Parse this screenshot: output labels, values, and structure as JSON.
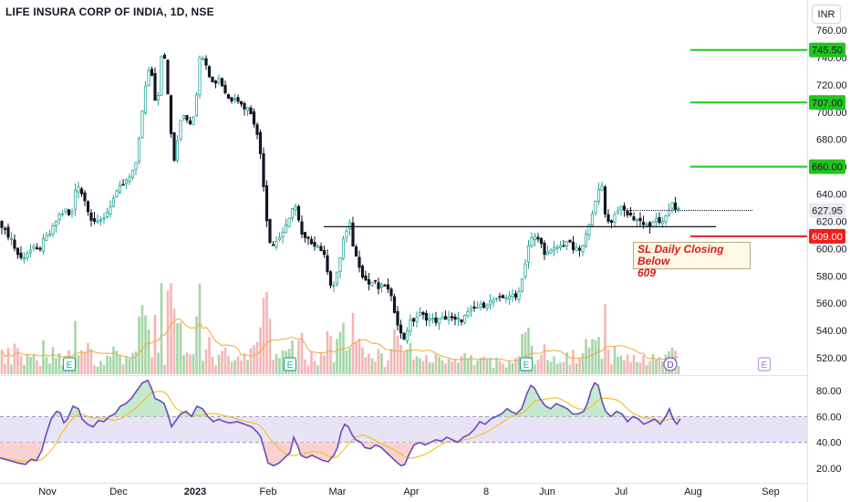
{
  "header": {
    "title": "LIFE INSURA CORP OF INDIA, 1D, NSE",
    "currency": "INR"
  },
  "annotation": {
    "line1": "SL Daily Closing Below",
    "line2": "609"
  },
  "colors": {
    "up": "#26a69a",
    "down": "#131722",
    "green_level": "#22c51e",
    "red_level": "#ef1e1e",
    "volume_up": "#a5d6a7",
    "volume_down": "#f4b6b6",
    "rsi_line": "#6a4bbd",
    "rsi_ma": "#f2c230",
    "rsi_band": "#e9e3f7"
  },
  "chart_data": {
    "type": "candlestick",
    "x_ticks": [
      "Nov",
      "Dec",
      "2023",
      "Feb",
      "Mar",
      "Apr",
      "8",
      "Jun",
      "Jul",
      "Aug",
      "Sep"
    ],
    "y_ticks": [
      "760.00",
      "740.00",
      "720.00",
      "700.00",
      "680.00",
      "660.00",
      "640.00",
      "620.00",
      "600.00",
      "580.00",
      "560.00",
      "540.00",
      "520.00"
    ],
    "ylim": [
      510,
      765
    ],
    "last_price": "627.95",
    "levels": [
      {
        "label": "745.50",
        "value": 745.5,
        "kind": "target"
      },
      {
        "label": "707.00",
        "value": 707.0,
        "kind": "target"
      },
      {
        "label": "660.00",
        "value": 660.0,
        "kind": "target"
      },
      {
        "label": "609.00",
        "value": 609.0,
        "kind": "stop"
      }
    ],
    "support_line": 616,
    "event_markers": [
      "E",
      "E",
      "E",
      "D",
      "E"
    ],
    "close_path": [
      [
        0,
        620
      ],
      [
        6,
        612
      ],
      [
        12,
        608
      ],
      [
        18,
        597
      ],
      [
        24,
        592
      ],
      [
        28,
        596
      ],
      [
        36,
        600
      ],
      [
        42,
        598
      ],
      [
        48,
        606
      ],
      [
        56,
        612
      ],
      [
        64,
        624
      ],
      [
        72,
        628
      ],
      [
        78,
        622
      ],
      [
        84,
        650
      ],
      [
        90,
        640
      ],
      [
        96,
        630
      ],
      [
        100,
        622
      ],
      [
        108,
        618
      ],
      [
        116,
        625
      ],
      [
        124,
        636
      ],
      [
        132,
        645
      ],
      [
        140,
        650
      ],
      [
        148,
        658
      ],
      [
        156,
        700
      ],
      [
        160,
        720
      ],
      [
        164,
        735
      ],
      [
        168,
        722
      ],
      [
        172,
        698
      ],
      [
        176,
        740
      ],
      [
        180,
        745
      ],
      [
        184,
        712
      ],
      [
        188,
        680
      ],
      [
        192,
        660
      ],
      [
        196,
        688
      ],
      [
        200,
        700
      ],
      [
        204,
        696
      ],
      [
        208,
        692
      ],
      [
        214,
        700
      ],
      [
        218,
        738
      ],
      [
        224,
        742
      ],
      [
        228,
        730
      ],
      [
        234,
        720
      ],
      [
        240,
        725
      ],
      [
        246,
        716
      ],
      [
        252,
        708
      ],
      [
        258,
        712
      ],
      [
        266,
        704
      ],
      [
        274,
        702
      ],
      [
        280,
        690
      ],
      [
        286,
        668
      ],
      [
        290,
        640
      ],
      [
        294,
        610
      ],
      [
        298,
        602
      ],
      [
        304,
        606
      ],
      [
        310,
        612
      ],
      [
        316,
        618
      ],
      [
        322,
        635
      ],
      [
        326,
        626
      ],
      [
        330,
        610
      ],
      [
        336,
        606
      ],
      [
        342,
        605
      ],
      [
        348,
        602
      ],
      [
        354,
        598
      ],
      [
        360,
        582
      ],
      [
        364,
        570
      ],
      [
        368,
        576
      ],
      [
        372,
        590
      ],
      [
        376,
        606
      ],
      [
        380,
        612
      ],
      [
        384,
        618
      ],
      [
        388,
        598
      ],
      [
        394,
        588
      ],
      [
        398,
        580
      ],
      [
        404,
        574
      ],
      [
        410,
        576
      ],
      [
        416,
        570
      ],
      [
        422,
        574
      ],
      [
        428,
        566
      ],
      [
        432,
        556
      ],
      [
        436,
        546
      ],
      [
        440,
        536
      ],
      [
        444,
        534
      ],
      [
        448,
        545
      ],
      [
        454,
        548
      ],
      [
        460,
        552
      ],
      [
        466,
        550
      ],
      [
        472,
        548
      ],
      [
        480,
        547
      ],
      [
        486,
        549
      ],
      [
        492,
        550
      ],
      [
        498,
        547
      ],
      [
        506,
        548
      ],
      [
        512,
        552
      ],
      [
        520,
        556
      ],
      [
        528,
        558
      ],
      [
        534,
        560
      ],
      [
        540,
        562
      ],
      [
        546,
        562
      ],
      [
        552,
        564
      ],
      [
        558,
        566
      ],
      [
        566,
        564
      ],
      [
        572,
        576
      ],
      [
        576,
        590
      ],
      [
        580,
        604
      ],
      [
        584,
        608
      ],
      [
        588,
        608
      ],
      [
        592,
        606
      ],
      [
        596,
        598
      ],
      [
        602,
        596
      ],
      [
        608,
        600
      ],
      [
        616,
        602
      ],
      [
        622,
        606
      ],
      [
        628,
        600
      ],
      [
        634,
        598
      ],
      [
        640,
        602
      ],
      [
        644,
        614
      ],
      [
        648,
        625
      ],
      [
        652,
        630
      ],
      [
        656,
        642
      ],
      [
        660,
        646
      ],
      [
        664,
        624
      ],
      [
        668,
        618
      ],
      [
        672,
        622
      ],
      [
        678,
        630
      ],
      [
        684,
        628
      ],
      [
        690,
        624
      ],
      [
        696,
        622
      ],
      [
        702,
        620
      ],
      [
        708,
        618
      ],
      [
        714,
        616
      ],
      [
        720,
        622
      ],
      [
        726,
        618
      ],
      [
        732,
        624
      ],
      [
        736,
        636
      ],
      [
        740,
        630
      ],
      [
        744,
        628
      ]
    ],
    "volume_axis_note": "volume histogram with moving average",
    "rsi": {
      "y_ticks": [
        "80.00",
        "60.00",
        "40.00",
        "20.00"
      ],
      "ylim": [
        12,
        92
      ],
      "band": [
        40,
        60
      ],
      "path": [
        [
          0,
          28
        ],
        [
          10,
          26
        ],
        [
          20,
          24
        ],
        [
          28,
          23
        ],
        [
          34,
          27
        ],
        [
          40,
          26
        ],
        [
          46,
          34
        ],
        [
          50,
          45
        ],
        [
          56,
          58
        ],
        [
          62,
          64
        ],
        [
          66,
          63
        ],
        [
          70,
          55
        ],
        [
          74,
          58
        ],
        [
          80,
          68
        ],
        [
          86,
          66
        ],
        [
          90,
          58
        ],
        [
          96,
          54
        ],
        [
          102,
          52
        ],
        [
          108,
          57
        ],
        [
          114,
          56
        ],
        [
          120,
          60
        ],
        [
          126,
          62
        ],
        [
          132,
          68
        ],
        [
          138,
          70
        ],
        [
          144,
          74
        ],
        [
          150,
          80
        ],
        [
          156,
          86
        ],
        [
          162,
          88
        ],
        [
          166,
          82
        ],
        [
          170,
          74
        ],
        [
          176,
          72
        ],
        [
          180,
          70
        ],
        [
          184,
          62
        ],
        [
          188,
          52
        ],
        [
          192,
          56
        ],
        [
          198,
          62
        ],
        [
          204,
          64
        ],
        [
          210,
          60
        ],
        [
          216,
          68
        ],
        [
          222,
          66
        ],
        [
          228,
          60
        ],
        [
          234,
          56
        ],
        [
          240,
          58
        ],
        [
          246,
          56
        ],
        [
          252,
          55
        ],
        [
          260,
          56
        ],
        [
          268,
          54
        ],
        [
          276,
          52
        ],
        [
          282,
          48
        ],
        [
          286,
          44
        ],
        [
          290,
          34
        ],
        [
          294,
          24
        ],
        [
          300,
          22
        ],
        [
          306,
          24
        ],
        [
          312,
          28
        ],
        [
          318,
          32
        ],
        [
          322,
          44
        ],
        [
          326,
          38
        ],
        [
          330,
          30
        ],
        [
          336,
          28
        ],
        [
          342,
          30
        ],
        [
          348,
          28
        ],
        [
          354,
          26
        ],
        [
          360,
          25
        ],
        [
          366,
          30
        ],
        [
          370,
          36
        ],
        [
          374,
          48
        ],
        [
          378,
          54
        ],
        [
          382,
          52
        ],
        [
          386,
          46
        ],
        [
          390,
          42
        ],
        [
          396,
          40
        ],
        [
          400,
          36
        ],
        [
          406,
          35
        ],
        [
          412,
          38
        ],
        [
          418,
          36
        ],
        [
          424,
          32
        ],
        [
          430,
          28
        ],
        [
          436,
          24
        ],
        [
          440,
          22
        ],
        [
          444,
          23
        ],
        [
          448,
          30
        ],
        [
          454,
          38
        ],
        [
          460,
          40
        ],
        [
          466,
          38
        ],
        [
          472,
          40
        ],
        [
          478,
          42
        ],
        [
          484,
          41
        ],
        [
          490,
          44
        ],
        [
          496,
          42
        ],
        [
          502,
          40
        ],
        [
          508,
          44
        ],
        [
          514,
          46
        ],
        [
          520,
          50
        ],
        [
          526,
          56
        ],
        [
          532,
          54
        ],
        [
          538,
          58
        ],
        [
          544,
          60
        ],
        [
          550,
          62
        ],
        [
          556,
          66
        ],
        [
          560,
          64
        ],
        [
          566,
          62
        ],
        [
          572,
          66
        ],
        [
          578,
          78
        ],
        [
          582,
          84
        ],
        [
          586,
          82
        ],
        [
          592,
          74
        ],
        [
          598,
          68
        ],
        [
          604,
          66
        ],
        [
          610,
          70
        ],
        [
          616,
          68
        ],
        [
          622,
          66
        ],
        [
          628,
          62
        ],
        [
          634,
          62
        ],
        [
          640,
          64
        ],
        [
          644,
          70
        ],
        [
          648,
          80
        ],
        [
          652,
          86
        ],
        [
          656,
          84
        ],
        [
          660,
          72
        ],
        [
          664,
          64
        ],
        [
          670,
          60
        ],
        [
          676,
          64
        ],
        [
          682,
          62
        ],
        [
          688,
          56
        ],
        [
          694,
          60
        ],
        [
          700,
          58
        ],
        [
          706,
          54
        ],
        [
          712,
          56
        ],
        [
          718,
          58
        ],
        [
          724,
          54
        ],
        [
          730,
          60
        ],
        [
          734,
          66
        ],
        [
          738,
          58
        ],
        [
          742,
          54
        ],
        [
          746,
          58
        ]
      ]
    }
  }
}
